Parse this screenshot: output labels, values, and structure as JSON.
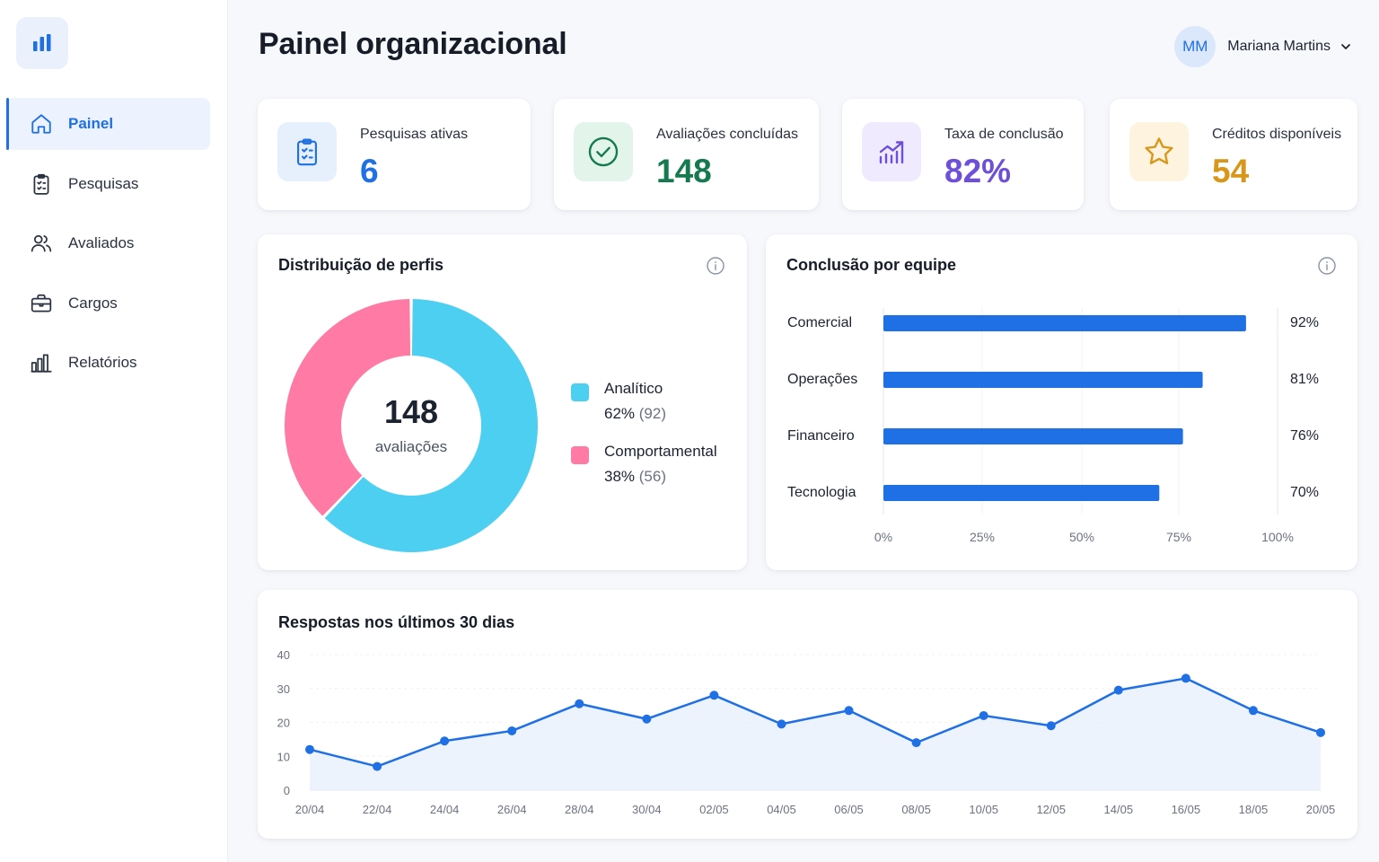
{
  "sidebar": {
    "logo_icon": "bar-chart-icon",
    "items": [
      {
        "label": "Painel",
        "icon": "home-icon",
        "active": true
      },
      {
        "label": "Pesquisas",
        "icon": "clipboard-icon"
      },
      {
        "label": "Avaliados",
        "icon": "users-icon"
      },
      {
        "label": "Cargos",
        "icon": "briefcase-icon"
      },
      {
        "label": "Relatórios",
        "icon": "bar-chart-icon"
      }
    ]
  },
  "header": {
    "title": "Painel organizacional",
    "user": {
      "initials": "MM",
      "name": "Mariana Martins"
    }
  },
  "stats": [
    {
      "label": "Pesquisas ativas",
      "value": "6",
      "icon": "clipboard-check-icon",
      "color": "#1f6fe5",
      "bg": "#e6f0fd"
    },
    {
      "label": "Avaliações concluídas",
      "value": "148",
      "icon": "check-circle-icon",
      "color": "#157a4f",
      "bg": "#e3f4ea"
    },
    {
      "label": "Taxa de conclusão",
      "value": "82%",
      "icon": "trending-up-icon",
      "color": "#6d4fd9",
      "bg": "#efeafd"
    },
    {
      "label": "Créditos disponíveis",
      "value": "54",
      "icon": "star-icon",
      "color": "#d9971a",
      "bg": "#fdf3df"
    }
  ],
  "donut": {
    "title": "Distribuição de perfis",
    "center_value": "148",
    "center_label": "avaliações",
    "segments": [
      {
        "name": "Analítico",
        "percent": "62%",
        "count": "(92)",
        "value": 92,
        "color": "#4dcff2"
      },
      {
        "name": "Comportamental",
        "percent": "38%",
        "count": "(56)",
        "value": 56,
        "color": "#ff7aa5"
      }
    ]
  },
  "team_chart": {
    "title": "Conclusão por equipe",
    "ticks": [
      "0%",
      "25%",
      "50%",
      "75%",
      "100%"
    ],
    "bars": [
      {
        "label": "Comercial",
        "value": 92,
        "display": "92%"
      },
      {
        "label": "Operações",
        "value": 81,
        "display": "81%"
      },
      {
        "label": "Financeiro",
        "value": 76,
        "display": "76%"
      },
      {
        "label": "Tecnologia",
        "value": 70,
        "display": "70%"
      }
    ],
    "color": "#1f6fe5"
  },
  "responses_chart": {
    "title": "Respostas nos últimos 30 dias",
    "y_ticks": [
      "0",
      "10",
      "20",
      "30",
      "40"
    ],
    "x_labels": [
      "20/04",
      "22/04",
      "24/04",
      "26/04",
      "28/04",
      "30/04",
      "02/05",
      "04/05",
      "06/05",
      "08/05",
      "10/05",
      "12/05",
      "14/05",
      "16/05",
      "18/05",
      "20/05"
    ],
    "color": "#1f6fe5"
  },
  "chart_data": [
    {
      "type": "pie",
      "title": "Distribuição de perfis",
      "categories": [
        "Analítico",
        "Comportamental"
      ],
      "values": [
        92,
        56
      ],
      "percentages": [
        62,
        38
      ],
      "total": 148
    },
    {
      "type": "bar",
      "title": "Conclusão por equipe",
      "categories": [
        "Comercial",
        "Operações",
        "Financeiro",
        "Tecnologia"
      ],
      "values": [
        92,
        81,
        76,
        70
      ],
      "xlim": [
        0,
        100
      ]
    },
    {
      "type": "area",
      "title": "Respostas nos últimos 30 dias",
      "x": [
        "20/04",
        "22/04",
        "24/04",
        "26/04",
        "28/04",
        "30/04",
        "02/05",
        "04/05",
        "06/05",
        "08/05",
        "10/05",
        "12/05",
        "14/05",
        "16/05",
        "18/05",
        "20/05"
      ],
      "values": [
        12,
        7,
        14.5,
        17.5,
        25.5,
        21,
        28,
        19.5,
        23.5,
        14,
        22,
        19,
        29.5,
        33,
        23.5,
        17
      ],
      "ylim": [
        0,
        40
      ],
      "grid": true
    }
  ]
}
